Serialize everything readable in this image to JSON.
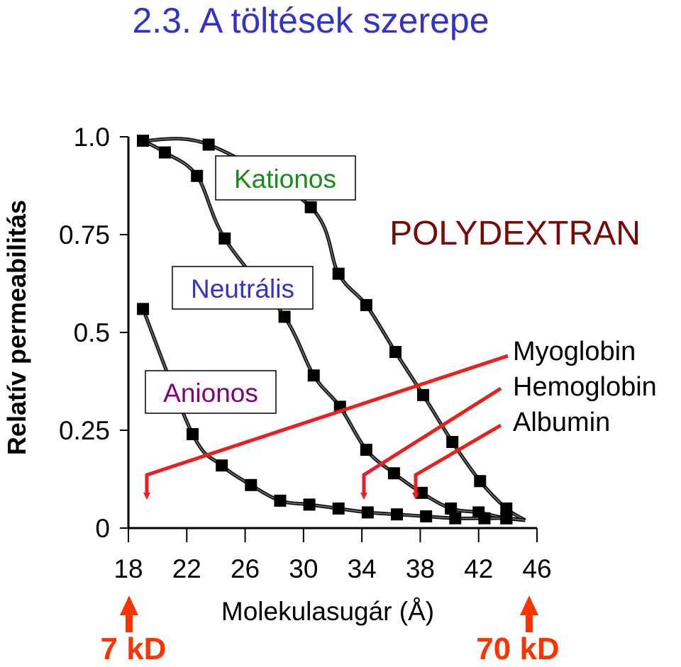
{
  "slide": {
    "title": "2.3. A töltések szerepe",
    "title_color": "#3333cc",
    "polymer_label": "POLYDEXTRAN",
    "polymer_color": "#7a0a0a",
    "molecules": [
      "Myoglobin",
      "Hemoglobin",
      "Albumin"
    ],
    "arrow_color": "#e82020",
    "kd_labels": {
      "left": "7 kD",
      "right": "70 kD"
    },
    "kd_color": "#ff3300"
  },
  "chart_data": {
    "type": "line",
    "xlabel": "Molekulasugár (Å)",
    "ylabel": "Relatív permeabilitás",
    "xlim": [
      18,
      46
    ],
    "ylim": [
      0,
      1.0
    ],
    "x_ticks": [
      18,
      22,
      26,
      30,
      34,
      38,
      42,
      46
    ],
    "y_ticks": [
      {
        "value": 0,
        "label": "0"
      },
      {
        "value": 0.25,
        "label": "0.25"
      },
      {
        "value": 0.5,
        "label": "0.5"
      },
      {
        "value": 0.75,
        "label": "0.75"
      },
      {
        "value": 1.0,
        "label": "1.0"
      }
    ],
    "grid": false,
    "series": [
      {
        "name": "Kationos",
        "label_color": "#1a8a1a",
        "x": [
          19,
          23.5,
          30.5,
          32.4,
          34.3,
          36.3,
          38.2,
          40.2,
          42.1,
          43.9
        ],
        "y": [
          0.99,
          0.98,
          0.82,
          0.65,
          0.57,
          0.45,
          0.34,
          0.22,
          0.12,
          0.05
        ]
      },
      {
        "name": "Neutrális",
        "label_color": "#3333cc",
        "x": [
          19,
          20.5,
          22.7,
          24.6,
          28.7,
          30.7,
          32.5,
          34.3,
          36.2,
          38.1,
          40.1,
          42,
          43.9
        ],
        "y": [
          0.99,
          0.96,
          0.9,
          0.74,
          0.54,
          0.39,
          0.31,
          0.2,
          0.14,
          0.09,
          0.05,
          0.04,
          0.025
        ]
      },
      {
        "name": "Anionos",
        "label_color": "#800080",
        "x": [
          19,
          22.4,
          24.4,
          26.4,
          28.4,
          30.4,
          32.4,
          34.4,
          36.4,
          38.4,
          40.4,
          42.4,
          43.9
        ],
        "y": [
          0.56,
          0.24,
          0.16,
          0.11,
          0.07,
          0.06,
          0.05,
          0.04,
          0.035,
          0.03,
          0.025,
          0.025,
          0.025
        ]
      }
    ]
  }
}
